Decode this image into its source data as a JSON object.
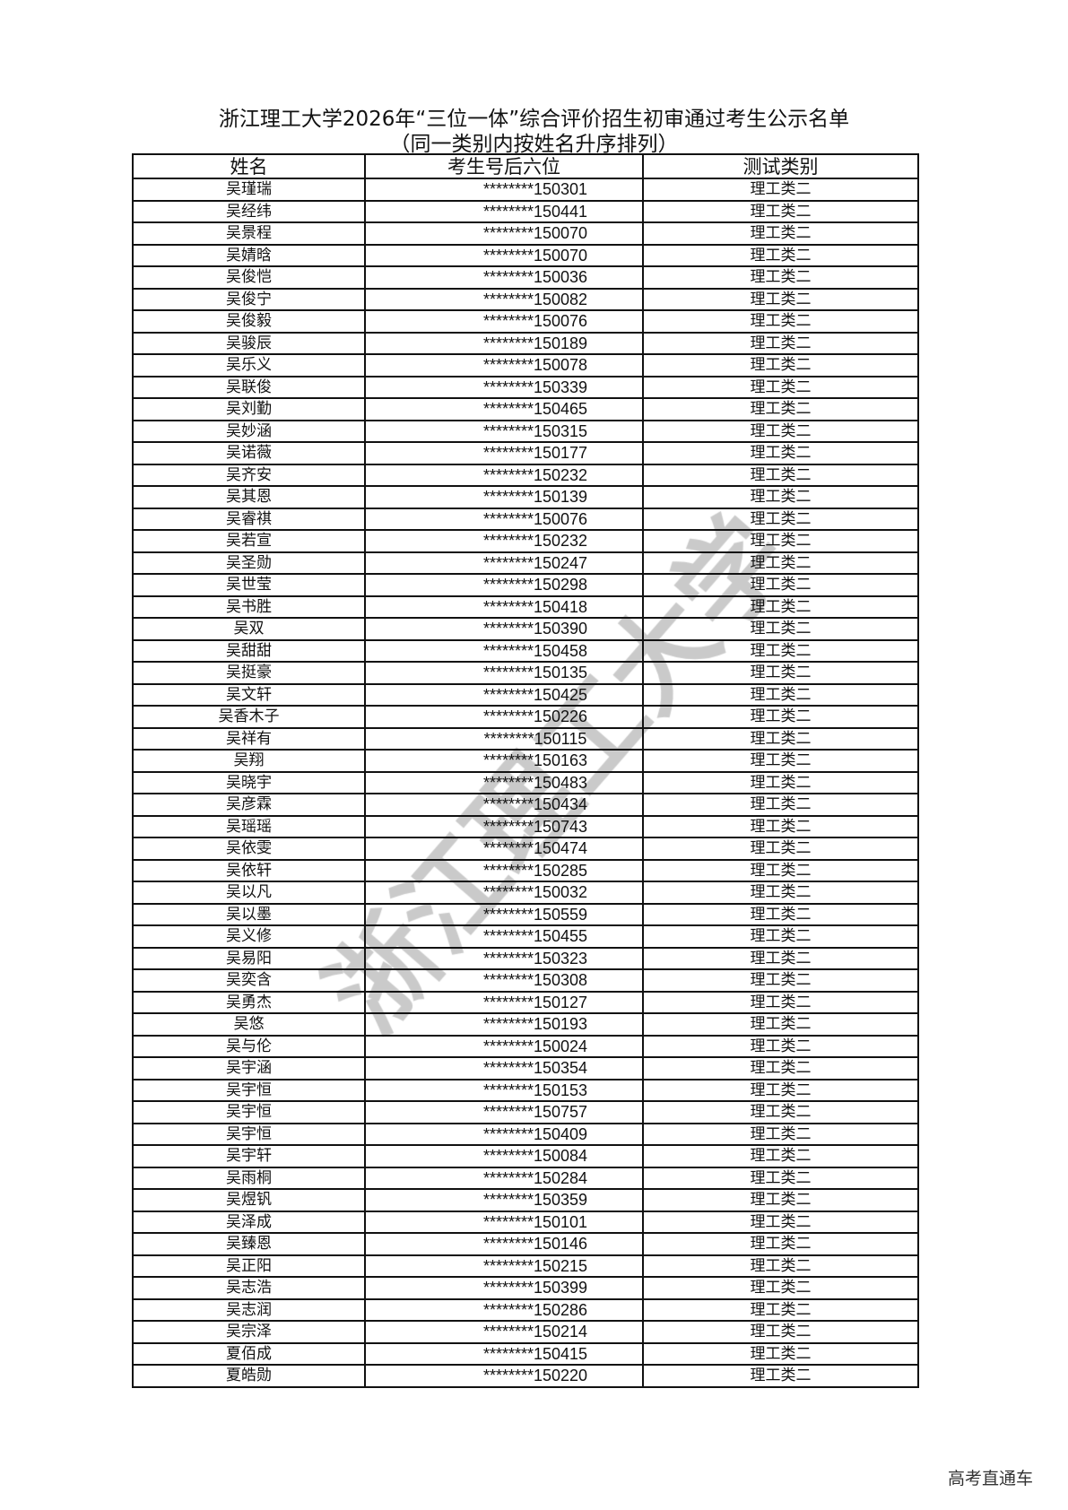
{
  "title": "浙江理工大学2026年“三位一体”综合评价招生初审通过考生公示名单",
  "subtitle": "（同一类别内按姓名升序排列）",
  "columns": [
    "姓名",
    "考生号后六位",
    "测试类别"
  ],
  "rows": [
    [
      "吴瑾瑞",
      "********150301",
      "理工类二"
    ],
    [
      "吴经纬",
      "********150441",
      "理工类二"
    ],
    [
      "吴景程",
      "********150070",
      "理工类二"
    ],
    [
      "吴婧晗",
      "********150070",
      "理工类二"
    ],
    [
      "吴俊恺",
      "********150036",
      "理工类二"
    ],
    [
      "吴俊宁",
      "********150082",
      "理工类二"
    ],
    [
      "吴俊毅",
      "********150076",
      "理工类二"
    ],
    [
      "吴骏辰",
      "********150189",
      "理工类二"
    ],
    [
      "吴乐义",
      "********150078",
      "理工类二"
    ],
    [
      "吴联俊",
      "********150339",
      "理工类二"
    ],
    [
      "吴刘勤",
      "********150465",
      "理工类二"
    ],
    [
      "吴妙涵",
      "********150315",
      "理工类二"
    ],
    [
      "吴诺薇",
      "********150177",
      "理工类二"
    ],
    [
      "吴齐安",
      "********150232",
      "理工类二"
    ],
    [
      "吴其恩",
      "********150139",
      "理工类二"
    ],
    [
      "吴睿祺",
      "********150076",
      "理工类二"
    ],
    [
      "吴若宣",
      "********150232",
      "理工类二"
    ],
    [
      "吴圣勋",
      "********150247",
      "理工类二"
    ],
    [
      "吴世莹",
      "********150298",
      "理工类二"
    ],
    [
      "吴书胜",
      "********150418",
      "理工类二"
    ],
    [
      "吴双",
      "********150390",
      "理工类二"
    ],
    [
      "吴甜甜",
      "********150458",
      "理工类二"
    ],
    [
      "吴挺豪",
      "********150135",
      "理工类二"
    ],
    [
      "吴文轩",
      "********150425",
      "理工类二"
    ],
    [
      "吴香木子",
      "********150226",
      "理工类二"
    ],
    [
      "吴祥有",
      "********150115",
      "理工类二"
    ],
    [
      "吴翔",
      "********150163",
      "理工类二"
    ],
    [
      "吴晓宇",
      "********150483",
      "理工类二"
    ],
    [
      "吴彦霖",
      "********150434",
      "理工类二"
    ],
    [
      "吴瑶瑶",
      "********150743",
      "理工类二"
    ],
    [
      "吴依雯",
      "********150474",
      "理工类二"
    ],
    [
      "吴依轩",
      "********150285",
      "理工类二"
    ],
    [
      "吴以凡",
      "********150032",
      "理工类二"
    ],
    [
      "吴以墨",
      "********150559",
      "理工类二"
    ],
    [
      "吴义修",
      "********150455",
      "理工类二"
    ],
    [
      "吴易阳",
      "********150323",
      "理工类二"
    ],
    [
      "吴奕含",
      "********150308",
      "理工类二"
    ],
    [
      "吴勇杰",
      "********150127",
      "理工类二"
    ],
    [
      "吴悠",
      "********150193",
      "理工类二"
    ],
    [
      "吴与伦",
      "********150024",
      "理工类二"
    ],
    [
      "吴宇涵",
      "********150354",
      "理工类二"
    ],
    [
      "吴宇恒",
      "********150153",
      "理工类二"
    ],
    [
      "吴宇恒",
      "********150757",
      "理工类二"
    ],
    [
      "吴宇恒",
      "********150409",
      "理工类二"
    ],
    [
      "吴宇轩",
      "********150084",
      "理工类二"
    ],
    [
      "吴雨桐",
      "********150284",
      "理工类二"
    ],
    [
      "吴煜钒",
      "********150359",
      "理工类二"
    ],
    [
      "吴泽成",
      "********150101",
      "理工类二"
    ],
    [
      "吴臻恩",
      "********150146",
      "理工类二"
    ],
    [
      "吴正阳",
      "********150215",
      "理工类二"
    ],
    [
      "吴志浩",
      "********150399",
      "理工类二"
    ],
    [
      "吴志润",
      "********150286",
      "理工类二"
    ],
    [
      "吴宗泽",
      "********150214",
      "理工类二"
    ],
    [
      "夏佰成",
      "********150415",
      "理工类二"
    ],
    [
      "夏皓勋",
      "********150220",
      "理工类二"
    ]
  ],
  "watermark": "浙江理工大学",
  "footer": "高考直通车"
}
